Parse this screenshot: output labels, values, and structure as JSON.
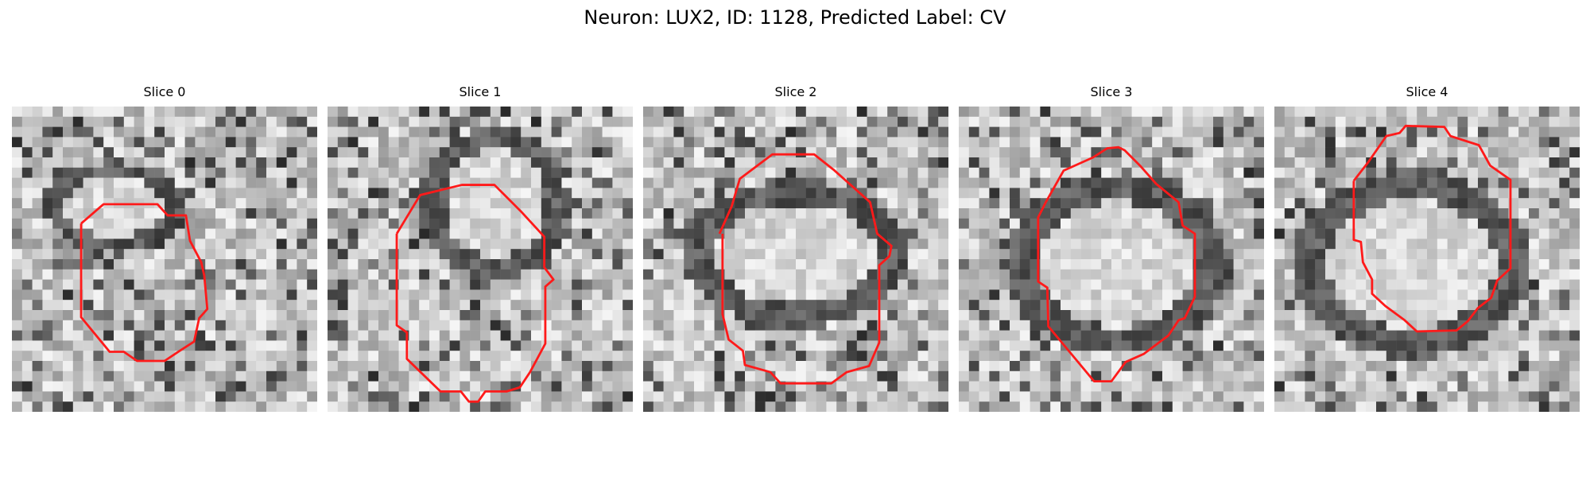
{
  "figure": {
    "title": "Neuron: LUX2, ID: 1128, Predicted Label: CV"
  },
  "colors": {
    "contour": "#ff1a1a",
    "background": "#ffffff"
  },
  "panels": [
    {
      "title": "Slice 0"
    },
    {
      "title": "Slice 1"
    },
    {
      "title": "Slice 2"
    },
    {
      "title": "Slice 3"
    },
    {
      "title": "Slice 4"
    }
  ]
}
